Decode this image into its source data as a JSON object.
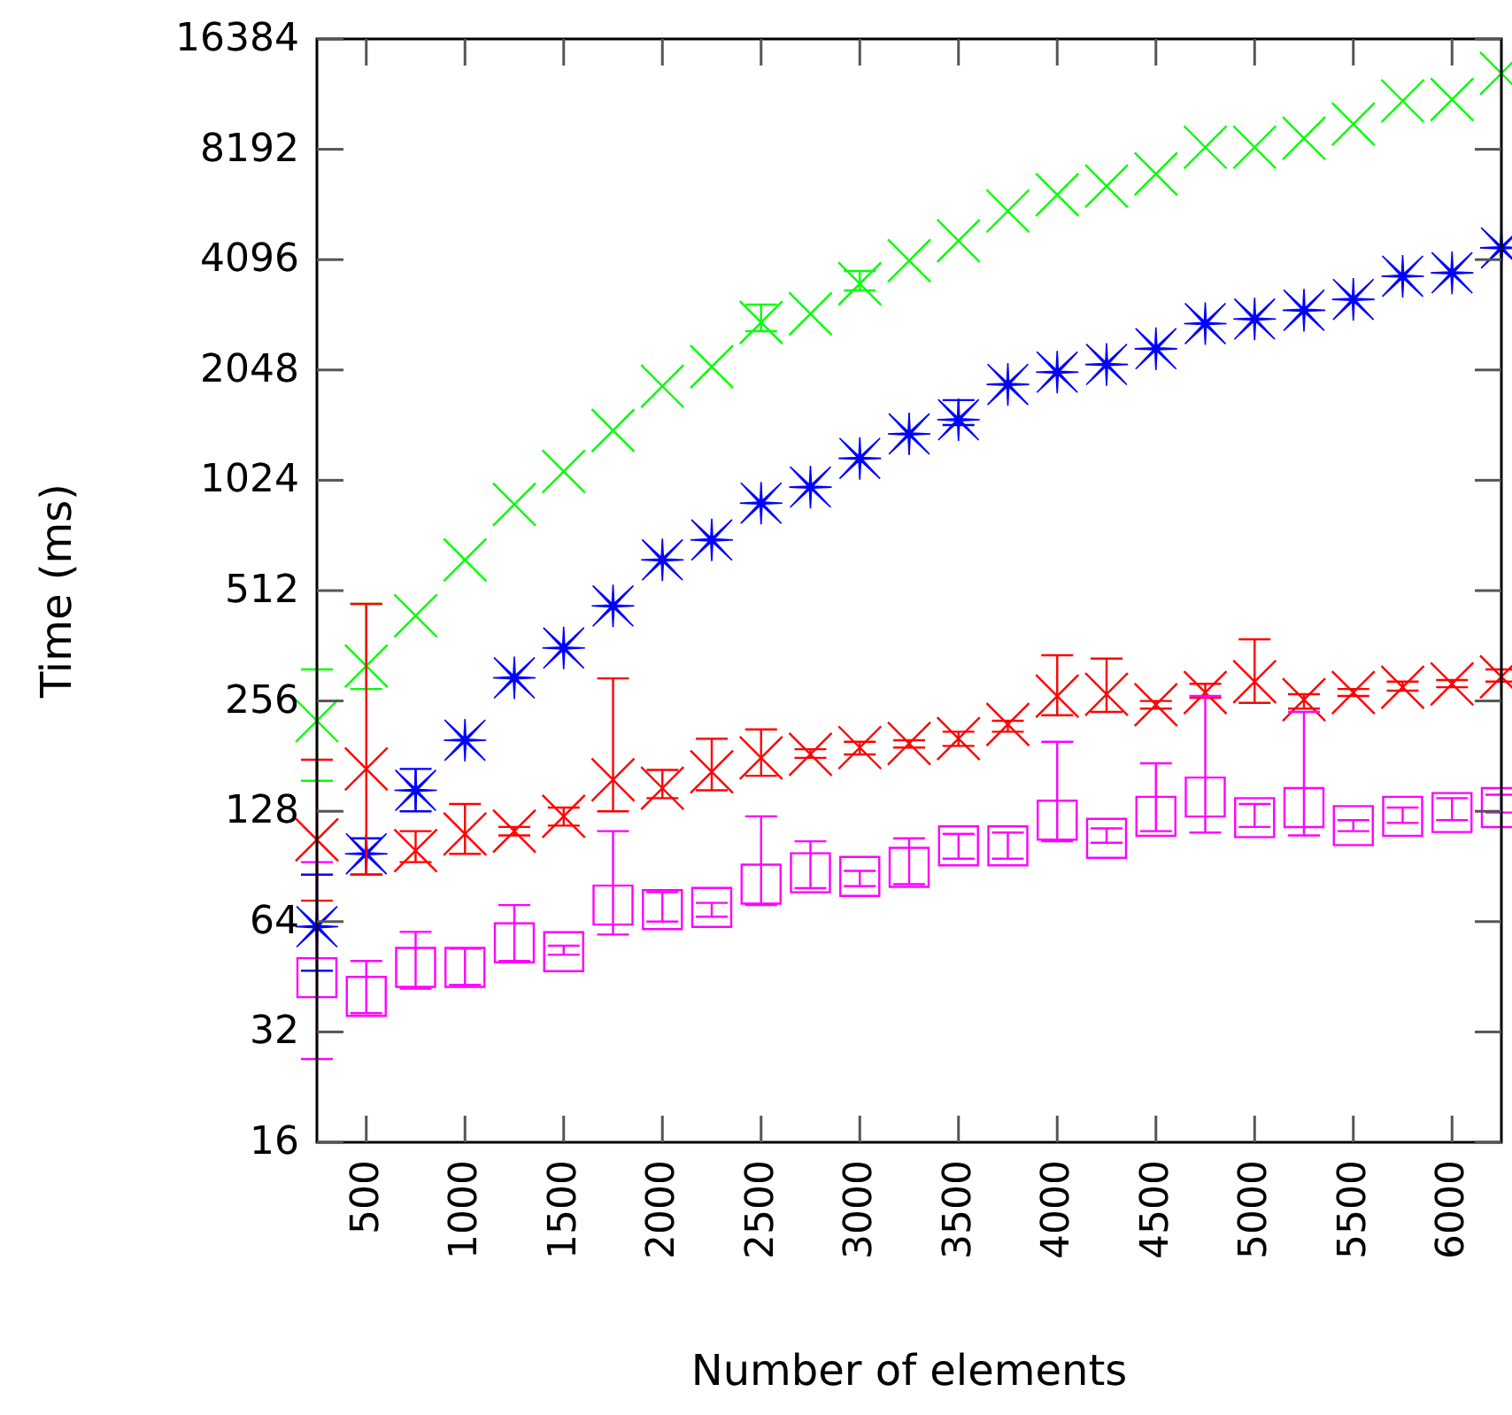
{
  "chart_data": {
    "type": "scatter",
    "xlabel": "Number of elements",
    "ylabel": "Time (ms)",
    "log": "y",
    "grid": false,
    "xlim": [
      250,
      6250
    ],
    "xticks": [
      500,
      1000,
      1500,
      2000,
      2500,
      3000,
      3500,
      4000,
      4500,
      5000,
      5500,
      6000
    ],
    "ylim": [
      16,
      16384
    ],
    "yticks": [
      16,
      32,
      64,
      128,
      256,
      512,
      1024,
      2048,
      4096,
      8192,
      16384
    ],
    "x": [
      250,
      500,
      750,
      1000,
      1250,
      1500,
      1750,
      2000,
      2250,
      2500,
      2750,
      3000,
      3250,
      3500,
      3750,
      4000,
      4250,
      4500,
      4750,
      5000,
      5250,
      5500,
      5750,
      6000,
      6250
    ],
    "series": [
      {
        "color": "#00ff00",
        "marker": "cross",
        "values": [
          226,
          319,
          437,
          621,
          880,
          1083,
          1400,
          1850,
          2090,
          2760,
          2915,
          3520,
          4070,
          4610,
          5560,
          6160,
          6500,
          7020,
          8300,
          8300,
          8780,
          9600,
          11100,
          11200,
          13200
        ],
        "errors": [
          [
            155,
            312
          ],
          [
            276,
            471
          ],
          null,
          null,
          null,
          null,
          null,
          null,
          null,
          [
            2614,
            3087
          ],
          null,
          [
            3376,
            3815
          ],
          null,
          null,
          null,
          null,
          null,
          null,
          null,
          null,
          null,
          null,
          null,
          null,
          null
        ]
      },
      {
        "color": "#0000ff",
        "marker": "star",
        "values": [
          62,
          98,
          146,
          200,
          296,
          357,
          465,
          621,
          704,
          887,
          981,
          1175,
          1370,
          1498,
          1870,
          2020,
          2120,
          2340,
          2740,
          2820,
          2980,
          3190,
          3690,
          3770,
          4410
        ],
        "errors": [
          [
            47,
            86
          ],
          [
            86,
            108
          ],
          [
            128,
            167
          ],
          null,
          null,
          null,
          null,
          null,
          null,
          null,
          null,
          null,
          null,
          [
            1449,
            1694
          ],
          null,
          null,
          null,
          null,
          null,
          null,
          null,
          null,
          null,
          null,
          null
        ]
      },
      {
        "color": "#ff0000",
        "marker": "cross",
        "values": [
          107,
          167,
          100,
          111,
          113,
          124,
          156,
          148,
          164,
          179,
          183,
          191,
          196,
          202,
          221,
          264,
          267,
          250,
          270,
          289,
          258,
          270,
          279,
          285,
          298
        ],
        "errors": [
          [
            73,
            177
          ],
          [
            86,
            471
          ],
          [
            93,
            113
          ],
          [
            98,
            134
          ],
          [
            110,
            116
          ],
          [
            117,
            131
          ],
          [
            128,
            295
          ],
          [
            139,
            166
          ],
          [
            146,
            202
          ],
          [
            160,
            214
          ],
          [
            179,
            189
          ],
          [
            183,
            198
          ],
          [
            191,
            200
          ],
          [
            193,
            211
          ],
          [
            211,
            226
          ],
          [
            234,
            341
          ],
          [
            239,
            334
          ],
          [
            244,
            256
          ],
          [
            261,
            285
          ],
          [
            253,
            377
          ],
          [
            244,
            267
          ],
          [
            264,
            276
          ],
          [
            273,
            289
          ],
          [
            279,
            292
          ],
          [
            289,
            312
          ]
        ]
      },
      {
        "color": "#ff00ff",
        "marker": "square",
        "values": [
          45,
          40,
          48,
          48,
          56,
          53,
          71,
          69,
          70,
          81,
          87,
          85,
          90,
          103,
          103,
          121,
          108,
          124,
          140,
          123,
          131,
          117,
          124,
          127,
          131
        ],
        "errors": [
          [
            27,
            93
          ],
          [
            36,
            50
          ],
          [
            42,
            60
          ],
          [
            43,
            54
          ],
          [
            50,
            71
          ],
          [
            52,
            55
          ],
          [
            59,
            113
          ],
          [
            64,
            77
          ],
          [
            66,
            72
          ],
          [
            71,
            124
          ],
          [
            79,
            106
          ],
          [
            80,
            88
          ],
          [
            81,
            108
          ],
          [
            95,
            111
          ],
          [
            95,
            112
          ],
          [
            106,
            198
          ],
          [
            105,
            115
          ],
          [
            113,
            173
          ],
          [
            112,
            264
          ],
          [
            116,
            134
          ],
          [
            110,
            239
          ],
          [
            113,
            121
          ],
          [
            119,
            131
          ],
          [
            121,
            139
          ],
          [
            127,
            142
          ]
        ]
      }
    ]
  }
}
